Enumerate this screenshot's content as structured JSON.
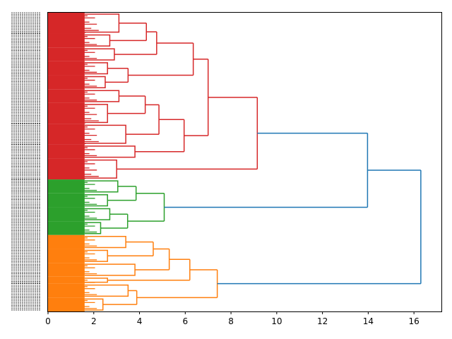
{
  "chart_data": {
    "type": "dendrogram",
    "title": "",
    "xlabel": "",
    "ylabel": "",
    "orientation": "right",
    "xlim": [
      0,
      17.2
    ],
    "xticks": [
      "0",
      "2",
      "4",
      "6",
      "8",
      "10",
      "12",
      "14",
      "16"
    ],
    "colors": {
      "cluster_red": "#d62728",
      "cluster_green": "#2ca02c",
      "cluster_orange": "#ff7f0e",
      "link_above": "#1f77b4"
    },
    "clusters": [
      {
        "name": "red",
        "color": "#d62728",
        "leaf_share": 0.535
      },
      {
        "name": "green",
        "color": "#2ca02c",
        "leaf_share": 0.203
      },
      {
        "name": "orange",
        "color": "#ff7f0e",
        "leaf_share": 0.262
      }
    ],
    "tree": {
      "h": 16.3,
      "c": "#1f77b4",
      "children": [
        {
          "h": 13.97,
          "c": "#1f77b4",
          "children": [
            {
              "h": 9.15,
              "c": "#d62728",
              "children": [
                {
                  "h": 7.0,
                  "c": "#d62728",
                  "children": [
                    {
                      "h": 6.35,
                      "c": "#d62728",
                      "children": [
                        {
                          "h": 4.75,
                          "c": "#d62728",
                          "children": [
                            {
                              "h": 4.3,
                              "c": "#d62728",
                              "children": [
                                {
                                  "h": 3.1,
                                  "c": "#d62728",
                                  "w": 3
                                },
                                {
                                  "h": 2.7,
                                  "c": "#d62728",
                                  "w": 2
                                }
                              ]
                            },
                            {
                              "h": 2.9,
                              "c": "#d62728",
                              "w": 2
                            }
                          ]
                        },
                        {
                          "h": 3.5,
                          "c": "#d62728",
                          "children": [
                            {
                              "h": 2.6,
                              "c": "#d62728",
                              "w": 2
                            },
                            {
                              "h": 2.5,
                              "c": "#d62728",
                              "w": 2
                            }
                          ]
                        }
                      ]
                    },
                    {
                      "h": 5.95,
                      "c": "#d62728",
                      "children": [
                        {
                          "h": 4.85,
                          "c": "#d62728",
                          "children": [
                            {
                              "h": 4.25,
                              "c": "#d62728",
                              "children": [
                                {
                                  "h": 3.1,
                                  "c": "#d62728",
                                  "w": 2
                                },
                                {
                                  "h": 2.6,
                                  "c": "#d62728",
                                  "w": 3
                                }
                              ]
                            },
                            {
                              "h": 3.4,
                              "c": "#d62728",
                              "w": 3
                            }
                          ]
                        },
                        {
                          "h": 3.8,
                          "c": "#d62728",
                          "w": 2
                        }
                      ]
                    }
                  ]
                },
                {
                  "h": 3.0,
                  "c": "#d62728",
                  "w": 3
                }
              ]
            },
            {
              "h": 5.08,
              "c": "#2ca02c",
              "children": [
                {
                  "h": 3.85,
                  "c": "#2ca02c",
                  "children": [
                    {
                      "h": 3.05,
                      "c": "#2ca02c",
                      "w": 2
                    },
                    {
                      "h": 2.6,
                      "c": "#2ca02c",
                      "w": 2
                    }
                  ]
                },
                {
                  "h": 3.48,
                  "c": "#2ca02c",
                  "children": [
                    {
                      "h": 2.7,
                      "c": "#2ca02c",
                      "w": 2
                    },
                    {
                      "h": 2.3,
                      "c": "#2ca02c",
                      "w": 2
                    }
                  ]
                }
              ]
            }
          ]
        },
        {
          "h": 7.4,
          "c": "#ff7f0e",
          "children": [
            {
              "h": 6.2,
              "c": "#ff7f0e",
              "children": [
                {
                  "h": 5.3,
                  "c": "#ff7f0e",
                  "children": [
                    {
                      "h": 4.6,
                      "c": "#ff7f0e",
                      "children": [
                        {
                          "h": 3.4,
                          "c": "#ff7f0e",
                          "w": 2
                        },
                        {
                          "h": 2.6,
                          "c": "#ff7f0e",
                          "w": 2
                        }
                      ]
                    },
                    {
                      "h": 3.8,
                      "c": "#ff7f0e",
                      "w": 2
                    }
                  ]
                },
                {
                  "h": 2.6,
                  "c": "#ff7f0e",
                  "w": 1
                }
              ]
            },
            {
              "h": 3.88,
              "c": "#ff7f0e",
              "children": [
                {
                  "h": 3.5,
                  "c": "#ff7f0e",
                  "w": 2
                },
                {
                  "h": 2.4,
                  "c": "#ff7f0e",
                  "w": 2
                }
              ]
            }
          ]
        }
      ]
    }
  }
}
